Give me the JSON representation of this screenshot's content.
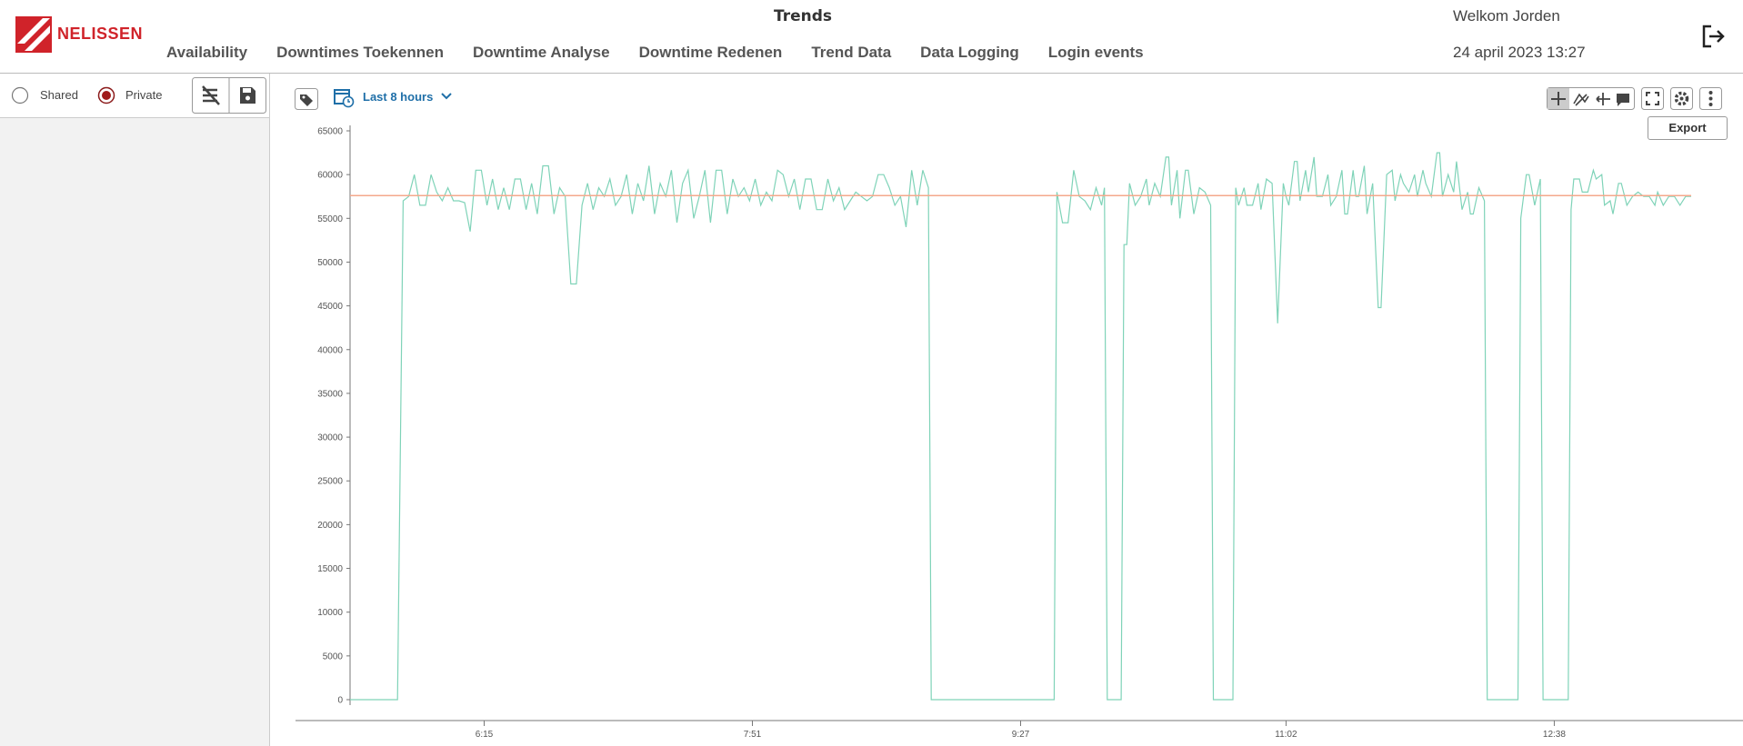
{
  "header": {
    "logo": "NELISSEN",
    "title": "Trends",
    "welcome": "Welkom Jorden",
    "date": "24 april 2023 13:27"
  },
  "nav": {
    "items": [
      "Availability",
      "Downtimes Toekennen",
      "Downtime Analyse",
      "Downtime Redenen",
      "Trend Data",
      "Data Logging",
      "Login events"
    ]
  },
  "sidebar": {
    "options": [
      "Shared",
      "Private"
    ],
    "selected": "Private"
  },
  "toolbar": {
    "range": "Last 8 hours",
    "export": "Export"
  },
  "chart_data": {
    "type": "line",
    "color": "#7fd3b8",
    "x": [
      327,
      344,
      346,
      348,
      350,
      352,
      354,
      356,
      358,
      360,
      362,
      364,
      366,
      368,
      370,
      372,
      374,
      376,
      378,
      380,
      382,
      384,
      386,
      388,
      390,
      392,
      394,
      396,
      398,
      400,
      402,
      404,
      406,
      408,
      410,
      412,
      414,
      416,
      418,
      420,
      422,
      424,
      426,
      428,
      430,
      432,
      434,
      436,
      438,
      440,
      442,
      444,
      446,
      448,
      450,
      452,
      454,
      456,
      458,
      460,
      462,
      464,
      466,
      468,
      470,
      472,
      474,
      476,
      478,
      480,
      482,
      484,
      486,
      488,
      490,
      492,
      494,
      496,
      498,
      500,
      502,
      504,
      506,
      508,
      510,
      512,
      514,
      516,
      518,
      520,
      522,
      524,
      526,
      528,
      530,
      532,
      534,
      535,
      579,
      580,
      582,
      584,
      586,
      588,
      590,
      592,
      594,
      596,
      597,
      598,
      603,
      604,
      605,
      606,
      608,
      610,
      612,
      613,
      615,
      617,
      619,
      620,
      621,
      623,
      624,
      626,
      627,
      629,
      631,
      633,
      635,
      636,
      643,
      644,
      645,
      647,
      648,
      650,
      652,
      653,
      655,
      657,
      659,
      661,
      662,
      663,
      665,
      666,
      667,
      669,
      670,
      672,
      673,
      675,
      677,
      678,
      680,
      682,
      683,
      684,
      686,
      687,
      688,
      690,
      691,
      693,
      695,
      696,
      698,
      700,
      701,
      703,
      704,
      706,
      708,
      709,
      711,
      712,
      714,
      716,
      717,
      718,
      720,
      722,
      723,
      725,
      727,
      728,
      729,
      731,
      733,
      734,
      745,
      746,
      748,
      749,
      751,
      753,
      754,
      763,
      764,
      765,
      767,
      768,
      770,
      772,
      773,
      775,
      776,
      778,
      779,
      781,
      782,
      784,
      786,
      788,
      790,
      792,
      794,
      795,
      797,
      799,
      801,
      803,
      805,
      807
    ],
    "values": [
      0,
      0,
      57000,
      57500,
      60000,
      56500,
      56500,
      60000,
      58000,
      57000,
      58500,
      57000,
      57000,
      56800,
      53500,
      60500,
      60500,
      56500,
      59500,
      56000,
      58500,
      56000,
      59500,
      59500,
      56000,
      59000,
      55500,
      61000,
      61000,
      55500,
      58500,
      57500,
      47500,
      47500,
      56500,
      59000,
      56000,
      58500,
      57500,
      59500,
      56500,
      57500,
      60000,
      55500,
      59000,
      57000,
      61000,
      55500,
      59000,
      57500,
      60500,
      54500,
      59000,
      60500,
      55000,
      57500,
      60500,
      54500,
      60500,
      60500,
      55500,
      59500,
      57500,
      58500,
      57000,
      59500,
      56500,
      58000,
      57000,
      60500,
      60000,
      57500,
      59500,
      56000,
      59500,
      59500,
      56000,
      56000,
      59500,
      57000,
      58500,
      56000,
      57000,
      58000,
      57500,
      57000,
      57500,
      60000,
      60000,
      58500,
      56500,
      57500,
      54000,
      60500,
      56500,
      60500,
      58500,
      0,
      0,
      58000,
      54500,
      54500,
      60500,
      57500,
      57000,
      56000,
      58500,
      56500,
      58500,
      0,
      0,
      52000,
      52000,
      59000,
      56500,
      57500,
      59500,
      56500,
      59000,
      57500,
      62000,
      62000,
      56500,
      60500,
      55000,
      60500,
      60500,
      55500,
      58500,
      58000,
      56500,
      0,
      0,
      58500,
      56500,
      58500,
      56500,
      56500,
      59000,
      56000,
      59500,
      59000,
      43000,
      59000,
      57500,
      56500,
      61500,
      61500,
      57000,
      60500,
      58000,
      62000,
      57500,
      57500,
      60000,
      56500,
      57500,
      60500,
      55500,
      55500,
      60500,
      57500,
      57500,
      61000,
      55500,
      59000,
      44800,
      44800,
      60000,
      60500,
      57000,
      60000,
      59000,
      58000,
      60000,
      57500,
      60500,
      59000,
      57500,
      62500,
      62500,
      57500,
      60000,
      58000,
      61500,
      56000,
      58000,
      55500,
      55500,
      58500,
      57000,
      0,
      0,
      55000,
      60000,
      60000,
      56500,
      59500,
      0,
      0,
      56000,
      59500,
      59500,
      58000,
      58000,
      60500,
      59500,
      60000,
      56500,
      57000,
      55500,
      59000,
      59000,
      56500,
      57500,
      58000,
      57500,
      57500,
      56500,
      58000,
      56500,
      57500,
      57500,
      56500,
      57500,
      57500
    ],
    "xlim": [
      327,
      807
    ],
    "xticks": [
      {
        "value": 375,
        "label": "6:15"
      },
      {
        "value": 471,
        "label": "7:51"
      },
      {
        "value": 567,
        "label": "9:27"
      },
      {
        "value": 662,
        "label": "11:02"
      },
      {
        "value": 758,
        "label": "12:38"
      }
    ],
    "ylim": [
      0,
      65000
    ],
    "yticks": [
      0,
      5000,
      10000,
      15000,
      20000,
      25000,
      30000,
      35000,
      40000,
      45000,
      50000,
      55000,
      60000,
      65000
    ],
    "reference_line": 57600,
    "reference_color": "#f4a88c"
  }
}
